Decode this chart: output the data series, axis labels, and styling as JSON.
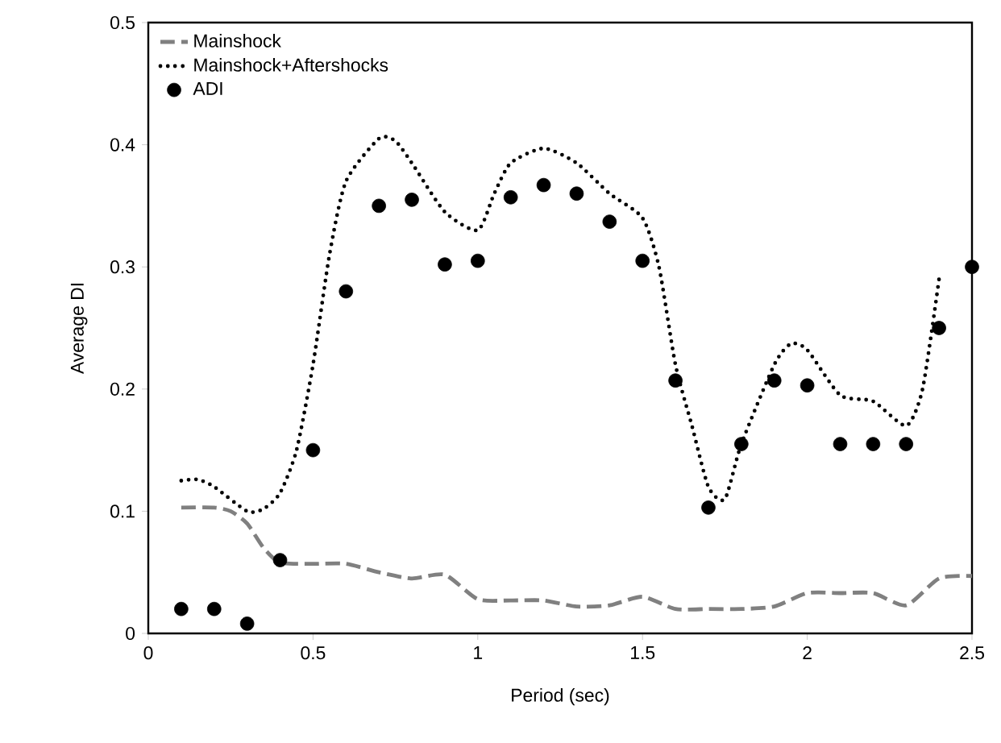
{
  "chart_data": {
    "type": "line",
    "xlabel": "Period (sec)",
    "ylabel": "Average DI",
    "xlim": [
      0,
      2.5
    ],
    "ylim": [
      0,
      0.5
    ],
    "xticks": [
      0,
      0.5,
      1,
      1.5,
      2,
      2.5
    ],
    "yticks": [
      0,
      0.1,
      0.2,
      0.3,
      0.4,
      0.5
    ],
    "grid": false,
    "legend": "top left",
    "series": [
      {
        "name": "Mainshock",
        "color": "#808080",
        "line_style": "dashed",
        "marker": "none",
        "x": [
          0.1,
          0.2,
          0.25,
          0.3,
          0.35,
          0.4,
          0.5,
          0.6,
          0.7,
          0.8,
          0.9,
          1.0,
          1.1,
          1.2,
          1.3,
          1.4,
          1.5,
          1.6,
          1.7,
          1.8,
          1.9,
          2.0,
          2.1,
          2.2,
          2.3,
          2.4,
          2.5
        ],
        "values": [
          0.103,
          0.103,
          0.1,
          0.09,
          0.07,
          0.058,
          0.057,
          0.057,
          0.05,
          0.045,
          0.048,
          0.028,
          0.027,
          0.027,
          0.022,
          0.023,
          0.03,
          0.02,
          0.02,
          0.02,
          0.022,
          0.033,
          0.033,
          0.033,
          0.023,
          0.045,
          0.047
        ]
      },
      {
        "name": "Mainshock+Aftershocks",
        "color": "#000000",
        "line_style": "dotted",
        "marker": "none",
        "x": [
          0.1,
          0.15,
          0.2,
          0.3,
          0.35,
          0.4,
          0.45,
          0.5,
          0.55,
          0.6,
          0.7,
          0.75,
          0.8,
          0.9,
          1.0,
          1.05,
          1.1,
          1.2,
          1.3,
          1.4,
          1.5,
          1.55,
          1.6,
          1.65,
          1.7,
          1.75,
          1.8,
          1.9,
          1.95,
          2.0,
          2.1,
          2.2,
          2.3,
          2.35,
          2.4
        ],
        "values": [
          0.125,
          0.126,
          0.12,
          0.1,
          0.102,
          0.115,
          0.15,
          0.22,
          0.31,
          0.37,
          0.405,
          0.403,
          0.385,
          0.345,
          0.33,
          0.36,
          0.385,
          0.397,
          0.385,
          0.36,
          0.34,
          0.3,
          0.22,
          0.17,
          0.12,
          0.11,
          0.155,
          0.22,
          0.237,
          0.232,
          0.195,
          0.19,
          0.17,
          0.2,
          0.29
        ]
      },
      {
        "name": "ADI",
        "type": "scatter",
        "color": "#000000",
        "marker": "circle",
        "x": [
          0.1,
          0.2,
          0.3,
          0.4,
          0.5,
          0.6,
          0.7,
          0.8,
          0.9,
          1.0,
          1.1,
          1.2,
          1.3,
          1.4,
          1.5,
          1.6,
          1.7,
          1.8,
          1.9,
          2.0,
          2.1,
          2.2,
          2.3,
          2.4,
          2.5
        ],
        "values": [
          0.02,
          0.02,
          0.008,
          0.06,
          0.15,
          0.28,
          0.35,
          0.355,
          0.302,
          0.305,
          0.357,
          0.367,
          0.36,
          0.337,
          0.305,
          0.207,
          0.103,
          0.155,
          0.207,
          0.203,
          0.155,
          0.155,
          0.155,
          0.25,
          0.3
        ]
      }
    ]
  }
}
